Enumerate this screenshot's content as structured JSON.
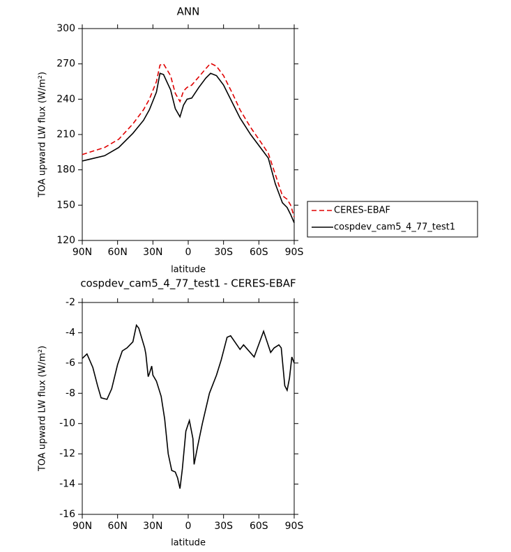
{
  "chart_data": [
    {
      "type": "line",
      "title": "ANN",
      "x_label": "latitude",
      "y_label": "TOA upward LW flux (W/m²)",
      "x": [
        90,
        71,
        59,
        47,
        38,
        33,
        27,
        24,
        21,
        15,
        11,
        7,
        4,
        1,
        -3,
        -9,
        -15,
        -19,
        -24,
        -30,
        -38,
        -44,
        -53,
        -62,
        -68,
        -74,
        -80,
        -84,
        -87,
        -90
      ],
      "series": [
        {
          "name": "CERES-EBAF",
          "color": "#e00000",
          "dashed": true,
          "values": [
            193,
            199,
            206,
            219,
            231,
            240,
            255,
            269,
            270,
            260,
            245,
            238,
            247,
            250,
            252,
            259,
            266,
            270.5,
            268,
            260,
            244,
            231,
            216,
            203,
            194,
            176,
            158,
            155,
            150,
            140
          ]
        },
        {
          "name": "cospdev_cam5_4_77_test1",
          "color": "#000000",
          "dashed": false,
          "values": [
            187.5,
            192,
            199,
            211,
            222,
            231,
            246,
            262,
            261,
            248,
            232,
            225,
            235,
            240,
            241,
            250,
            258,
            262,
            260,
            252,
            236,
            224,
            210,
            198,
            190,
            168,
            152,
            148,
            142,
            135
          ]
        }
      ],
      "xlim": [
        90,
        -90
      ],
      "xticks": [
        {
          "value": 90,
          "label": "90N"
        },
        {
          "value": 60,
          "label": "60N"
        },
        {
          "value": 30,
          "label": "30N"
        },
        0,
        {
          "value": -30,
          "label": "30S"
        },
        {
          "value": -60,
          "label": "60S"
        },
        {
          "value": -90,
          "label": "90S"
        }
      ],
      "ylim": [
        120,
        300
      ],
      "yticks": [
        120,
        150,
        180,
        210,
        240,
        270,
        300
      ],
      "grid": false,
      "legend": "outside right"
    },
    {
      "type": "line",
      "title": "cospdev_cam5_4_77_test1 - CERES-EBAF",
      "x_label": "latitude",
      "y_label": "TOA upward LW flux (W/m²)",
      "x": [
        90,
        86,
        81,
        77,
        74,
        69,
        65,
        60,
        56,
        52,
        47,
        44,
        42,
        37,
        36,
        34,
        33,
        31,
        30,
        27,
        23,
        20,
        17,
        14,
        11,
        9,
        7,
        5,
        2,
        -1,
        -4,
        -5,
        -8,
        -12,
        -18,
        -24,
        -28,
        -33,
        -36,
        -44,
        -47,
        -56,
        -64,
        -70,
        -73,
        -77,
        -79,
        -82,
        -84,
        -86,
        -88,
        -90
      ],
      "series": [
        {
          "name": "cospdev_cam5_4_77_test1 - CERES-EBAF",
          "color": "#000000",
          "dashed": false,
          "values": [
            -5.7,
            -5.4,
            -6.3,
            -7.5,
            -8.3,
            -8.4,
            -7.7,
            -6.1,
            -5.2,
            -5.0,
            -4.6,
            -3.5,
            -3.7,
            -5.0,
            -5.4,
            -6.9,
            -6.7,
            -6.2,
            -6.8,
            -7.2,
            -8.2,
            -9.7,
            -12.0,
            -13.1,
            -13.2,
            -13.6,
            -14.3,
            -13.0,
            -10.5,
            -9.8,
            -11.0,
            -12.7,
            -11.5,
            -10.0,
            -8.0,
            -6.8,
            -5.8,
            -4.3,
            -4.2,
            -5.1,
            -4.8,
            -5.6,
            -3.9,
            -5.3,
            -5.0,
            -4.8,
            -5.0,
            -7.5,
            -7.8,
            -7.0,
            -5.6,
            -6.0
          ]
        }
      ],
      "xlim": [
        90,
        -90
      ],
      "xticks": [
        {
          "value": 90,
          "label": "90N"
        },
        {
          "value": 60,
          "label": "60N"
        },
        {
          "value": 30,
          "label": "30N"
        },
        0,
        {
          "value": -30,
          "label": "30S"
        },
        {
          "value": -60,
          "label": "60S"
        },
        {
          "value": -90,
          "label": "90S"
        }
      ],
      "ylim": [
        -16,
        -2
      ],
      "yticks": [
        -16,
        -14,
        -12,
        -10,
        -8,
        -6,
        -4,
        -2
      ],
      "grid": false
    }
  ]
}
